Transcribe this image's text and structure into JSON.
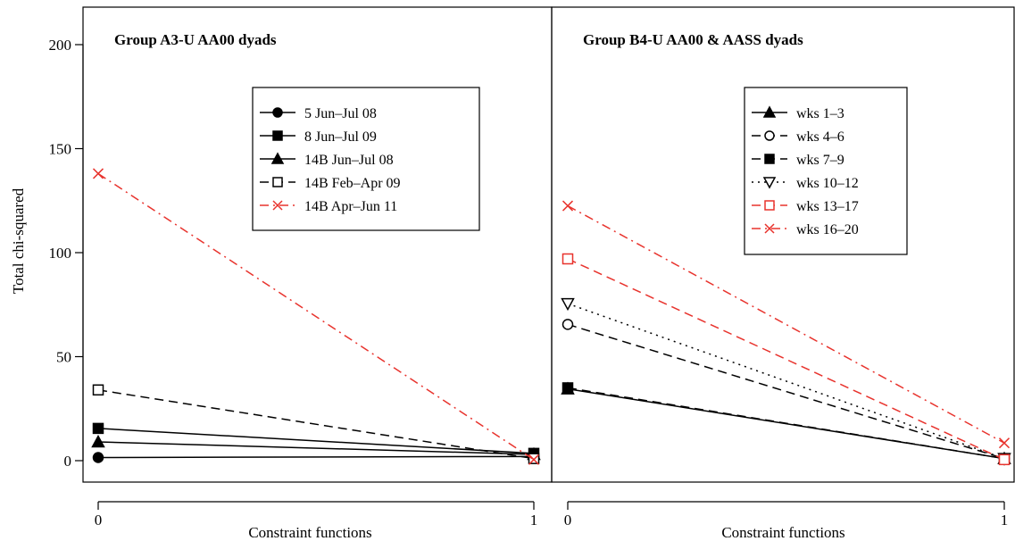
{
  "ylabel": "Total chi-squared",
  "y_ticks": [
    0,
    50,
    100,
    150,
    200
  ],
  "chart_data": [
    {
      "type": "line",
      "title": "Group A3-U AA00 dyads",
      "xlabel": "Constraint functions",
      "ylabel": "Total chi-squared",
      "x": [
        0,
        1
      ],
      "x_ticks": [
        "0",
        "1"
      ],
      "ylim": [
        0,
        210
      ],
      "grid": false,
      "legend_position": "upper-center",
      "series": [
        {
          "name": "5 Jun–Jul 08",
          "values": [
            1.5,
            2
          ],
          "color": "#000000",
          "dash": "solid",
          "marker": "circle"
        },
        {
          "name": "8 Jun–Jul 09",
          "values": [
            15.5,
            3.5
          ],
          "color": "#000000",
          "dash": "solid",
          "marker": "square-filled"
        },
        {
          "name": "14B Jun–Jul 08",
          "values": [
            9,
            3
          ],
          "color": "#000000",
          "dash": "solid",
          "marker": "triangle-filled"
        },
        {
          "name": "14B Feb–Apr 09",
          "values": [
            34,
            1
          ],
          "color": "#000000",
          "dash": "dashed",
          "marker": "square-open"
        },
        {
          "name": "14B Apr–Jun 11",
          "values": [
            138,
            0.5
          ],
          "color": "#e8332d",
          "dash": "dashdot",
          "marker": "x"
        }
      ]
    },
    {
      "type": "line",
      "title": "Group B4-U AA00 & AASS dyads",
      "xlabel": "Constraint functions",
      "ylabel": "Total chi-squared",
      "x": [
        0,
        1
      ],
      "x_ticks": [
        "0",
        "1"
      ],
      "ylim": [
        0,
        210
      ],
      "grid": false,
      "legend_position": "upper-center",
      "series": [
        {
          "name": "wks 1–3",
          "values": [
            34.5,
            1
          ],
          "color": "#000000",
          "dash": "solid",
          "marker": "triangle-filled"
        },
        {
          "name": "wks 4–6",
          "values": [
            65.5,
            1
          ],
          "color": "#000000",
          "dash": "dashed",
          "marker": "circle-open"
        },
        {
          "name": "wks 7–9",
          "values": [
            35,
            1
          ],
          "color": "#000000",
          "dash": "dashed",
          "marker": "square-filled"
        },
        {
          "name": "wks 10–12",
          "values": [
            75.5,
            1
          ],
          "color": "#000000",
          "dash": "dotted",
          "marker": "triangle-down-open"
        },
        {
          "name": "wks 13–17",
          "values": [
            97,
            0.5
          ],
          "color": "#e8332d",
          "dash": "dashed",
          "marker": "square-open"
        },
        {
          "name": "wks 16–20",
          "values": [
            122.5,
            8.5
          ],
          "color": "#e8332d",
          "dash": "dashdot",
          "marker": "x"
        }
      ]
    }
  ]
}
